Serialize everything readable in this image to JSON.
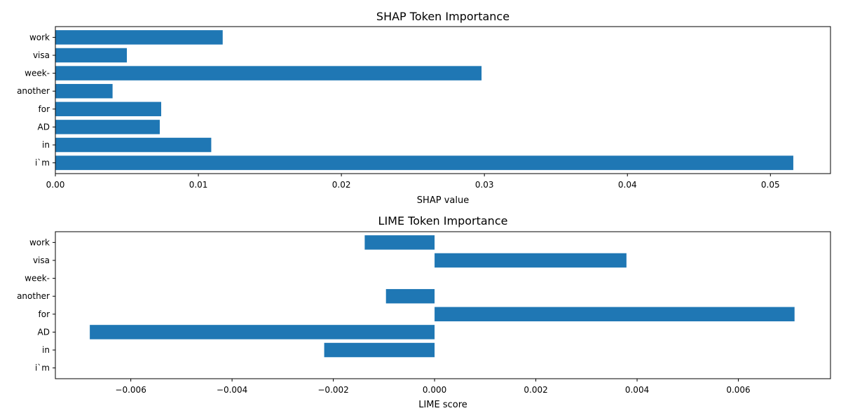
{
  "chart_data": [
    {
      "type": "bar",
      "orientation": "horizontal",
      "title": "SHAP Token Importance",
      "xlabel": "SHAP value",
      "ylabel": "",
      "categories": [
        "work",
        "visa",
        "week-",
        "another",
        "for",
        "AD",
        "in",
        "i`m"
      ],
      "values": [
        0.0117,
        0.005,
        0.0298,
        0.004,
        0.0074,
        0.0073,
        0.0109,
        0.0516
      ],
      "xlim": [
        0,
        0.0542
      ],
      "xticks": [
        0.0,
        0.01,
        0.02,
        0.03,
        0.04,
        0.05
      ],
      "xtick_labels": [
        "0.00",
        "0.01",
        "0.02",
        "0.03",
        "0.04",
        "0.05"
      ],
      "grid": false,
      "color": "#1f77b4"
    },
    {
      "type": "bar",
      "orientation": "horizontal",
      "title": "LIME Token Importance",
      "xlabel": "LIME score",
      "ylabel": "",
      "categories": [
        "work",
        "visa",
        "week-",
        "another",
        "for",
        "AD",
        "in",
        "i`m"
      ],
      "values": [
        -0.00138,
        0.00379,
        0.0,
        -0.00096,
        0.00711,
        -0.00681,
        -0.00218,
        0.0
      ],
      "xlim": [
        -0.00749,
        0.00782
      ],
      "xticks": [
        -0.006,
        -0.004,
        -0.002,
        0.0,
        0.002,
        0.004,
        0.006
      ],
      "xtick_labels": [
        "−0.006",
        "−0.004",
        "−0.002",
        "0.000",
        "0.002",
        "0.004",
        "0.006"
      ],
      "grid": false,
      "color": "#1f77b4"
    }
  ]
}
